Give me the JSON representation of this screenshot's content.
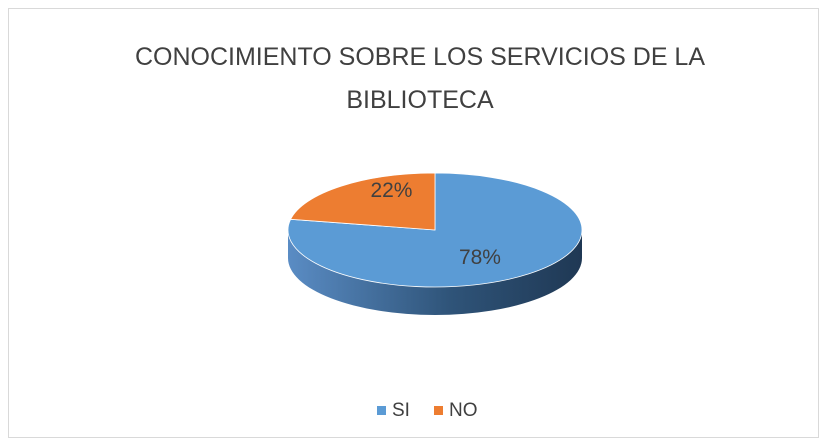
{
  "chart_data": {
    "type": "pie",
    "title": "CONOCIMIENTO SOBRE LOS SERVICIOS DE LA BIBLIOTECA",
    "categories": [
      "SI",
      "NO"
    ],
    "values": [
      78,
      22
    ],
    "value_labels": [
      "78%",
      "22%"
    ],
    "colors": [
      "#5b9bd5",
      "#ed7d31"
    ],
    "legend": "bottom"
  }
}
